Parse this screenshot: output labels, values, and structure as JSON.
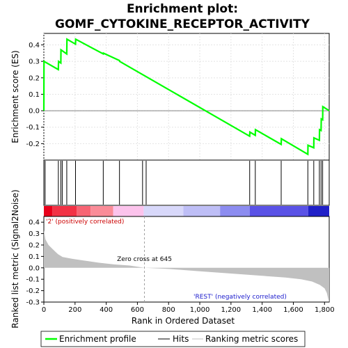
{
  "chart_data": {
    "type": "line",
    "title_line1": "Enrichment plot:",
    "title_line2": "GOMF_CYTOKINE_RECEPTOR_ACTIVITY",
    "es_panel": {
      "ylabel": "Enrichment score (ES)",
      "ylim": [
        -0.3,
        0.47
      ],
      "yticks": [
        -0.2,
        -0.1,
        0.0,
        0.1,
        0.2,
        0.3,
        0.4
      ],
      "ytick_labels": [
        "-0.2",
        "-0.1",
        "0.0",
        "0.1",
        "0.2",
        "0.3",
        "0.4"
      ],
      "color": "#00ff00",
      "grid": true,
      "points": [
        [
          0,
          0.0
        ],
        [
          1,
          0.3
        ],
        [
          93,
          0.25
        ],
        [
          94,
          0.3
        ],
        [
          109,
          0.29
        ],
        [
          110,
          0.37
        ],
        [
          147,
          0.345
        ],
        [
          148,
          0.435
        ],
        [
          203,
          0.405
        ],
        [
          204,
          0.435
        ],
        [
          381,
          0.345
        ],
        [
          382,
          0.35
        ],
        [
          485,
          0.305
        ],
        [
          486,
          0.3
        ],
        [
          1320,
          -0.155
        ],
        [
          1321,
          -0.13
        ],
        [
          1356,
          -0.15
        ],
        [
          1357,
          -0.115
        ],
        [
          1522,
          -0.205
        ],
        [
          1523,
          -0.17
        ],
        [
          1693,
          -0.265
        ],
        [
          1694,
          -0.21
        ],
        [
          1731,
          -0.225
        ],
        [
          1732,
          -0.165
        ],
        [
          1767,
          -0.18
        ],
        [
          1768,
          -0.115
        ],
        [
          1778,
          -0.12
        ],
        [
          1779,
          -0.05
        ],
        [
          1788,
          -0.055
        ],
        [
          1789,
          0.025
        ],
        [
          1830,
          0.0
        ]
      ]
    },
    "hits": [
      8,
      93,
      109,
      118,
      147,
      203,
      381,
      485,
      633,
      656,
      1320,
      1356,
      1522,
      1693,
      1731,
      1767,
      1778,
      1788
    ],
    "heatmap_segments": [
      {
        "start": 0,
        "end": 55,
        "color": "#e8001a"
      },
      {
        "start": 55,
        "end": 210,
        "color": "#f23245"
      },
      {
        "start": 210,
        "end": 300,
        "color": "#f76473"
      },
      {
        "start": 300,
        "end": 445,
        "color": "#fa8c98"
      },
      {
        "start": 445,
        "end": 640,
        "color": "#fcc3ec"
      },
      {
        "start": 640,
        "end": 895,
        "color": "#d8d8fa"
      },
      {
        "start": 895,
        "end": 1130,
        "color": "#bebef6"
      },
      {
        "start": 1130,
        "end": 1320,
        "color": "#8c8cf0"
      },
      {
        "start": 1320,
        "end": 1695,
        "color": "#5a52e6"
      },
      {
        "start": 1695,
        "end": 1830,
        "color": "#2020c8"
      }
    ],
    "metric_panel": {
      "ylabel": "Ranked list metric (Signal2Noise)",
      "ylim": [
        -0.3,
        0.45
      ],
      "yticks": [
        -0.3,
        -0.2,
        -0.1,
        0.0,
        0.1,
        0.2,
        0.3,
        0.4
      ],
      "ytick_labels": [
        "-0.3",
        "-0.2",
        "-0.1",
        "0.0",
        "0.1",
        "0.2",
        "0.3",
        "0.4"
      ],
      "fill_color": "#c0c0c0",
      "points": [
        [
          0,
          0.33
        ],
        [
          10,
          0.25
        ],
        [
          30,
          0.2
        ],
        [
          60,
          0.16
        ],
        [
          90,
          0.12
        ],
        [
          120,
          0.095
        ],
        [
          180,
          0.08
        ],
        [
          250,
          0.065
        ],
        [
          350,
          0.045
        ],
        [
          450,
          0.03
        ],
        [
          550,
          0.02
        ],
        [
          645,
          0.0
        ],
        [
          800,
          -0.01
        ],
        [
          1000,
          -0.03
        ],
        [
          1200,
          -0.05
        ],
        [
          1400,
          -0.07
        ],
        [
          1550,
          -0.085
        ],
        [
          1650,
          -0.1
        ],
        [
          1720,
          -0.12
        ],
        [
          1770,
          -0.15
        ],
        [
          1800,
          -0.18
        ],
        [
          1815,
          -0.22
        ],
        [
          1825,
          -0.28
        ],
        [
          1830,
          -0.3
        ]
      ],
      "zero_cross_rank": 645,
      "zero_cross_label": "Zero cross at 645",
      "pos_label": "'2' (positively correlated)",
      "neg_label": "'REST' (negatively correlated)"
    },
    "xaxis": {
      "xlabel": "Rank in Ordered Dataset",
      "xlim": [
        0,
        1830
      ],
      "xticks": [
        0,
        200,
        400,
        600,
        800,
        1000,
        1200,
        1400,
        1600,
        1800
      ],
      "xtick_labels": [
        "0",
        "200",
        "400",
        "600",
        "800",
        "1,000",
        "1,200",
        "1,400",
        "1,600",
        "1,800"
      ]
    },
    "legend": {
      "placement": "bottom",
      "items": [
        {
          "label": "Enrichment profile",
          "color": "#00ff00",
          "style": "thick-line"
        },
        {
          "label": "Hits",
          "color": "#000000",
          "style": "line"
        },
        {
          "label": "Ranking metric scores",
          "color": "#c0c0c0",
          "style": "line"
        }
      ]
    }
  }
}
